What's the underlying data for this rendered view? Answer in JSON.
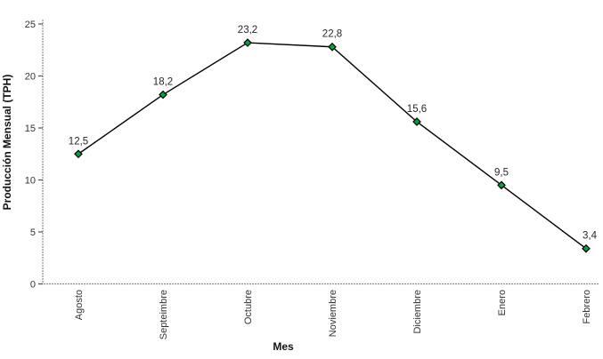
{
  "chart_data": {
    "type": "line",
    "categories": [
      "Agosto",
      "Septeimbre",
      "Octubre",
      "Noviembre",
      "Diciembre",
      "Enero",
      "Febrero"
    ],
    "values": [
      12.5,
      18.2,
      23.2,
      22.8,
      15.6,
      9.5,
      3.4
    ],
    "point_labels": [
      "12,5",
      "18,2",
      "23,2",
      "22,8",
      "15,6",
      "9,5",
      "3,4"
    ],
    "title": "",
    "xlabel": "Mes",
    "ylabel": "Producción Mensual (TPH)",
    "ylim": [
      0,
      25
    ],
    "yticks": [
      0,
      5,
      10,
      15,
      20,
      25
    ],
    "grid": false,
    "legend": false,
    "colors": {
      "line": "#000000",
      "marker_fill": "#00a33c",
      "marker_stroke": "#000000",
      "axis": "#8c8c8c",
      "tick": "#555555"
    },
    "marker_shape": "diamond"
  }
}
